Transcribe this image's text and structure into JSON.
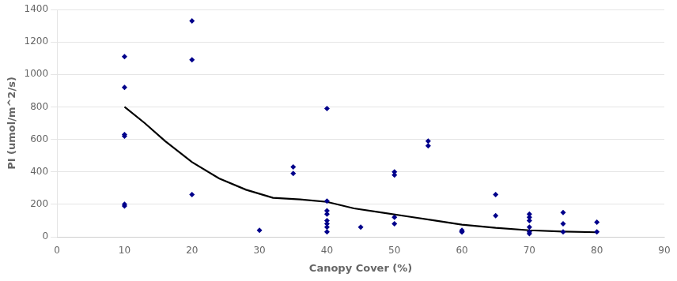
{
  "chart_data": {
    "type": "scatter",
    "x_label": "Canopy Cover (%)",
    "y_label": "PI (umol/m^2/s)",
    "series": [
      {
        "type": "scatter",
        "color": "#00008B",
        "marker": "diamond",
        "x": [
          10,
          10,
          10,
          10,
          10,
          10,
          20,
          20,
          20,
          30,
          35,
          35,
          40,
          40,
          40,
          40,
          40,
          40,
          40,
          40,
          45,
          50,
          50,
          50,
          50,
          55,
          55,
          60,
          60,
          60,
          65,
          65,
          70,
          70,
          70,
          70,
          70,
          70,
          75,
          75,
          75,
          80,
          80
        ],
        "values": [
          1110,
          920,
          630,
          620,
          190,
          200,
          1330,
          1090,
          260,
          40,
          430,
          390,
          790,
          220,
          160,
          140,
          100,
          80,
          60,
          30,
          60,
          400,
          380,
          120,
          80,
          590,
          560,
          40,
          30,
          30,
          260,
          130,
          140,
          120,
          100,
          60,
          30,
          20,
          150,
          80,
          30,
          90,
          30
        ]
      },
      {
        "type": "line",
        "color": "#000000",
        "line_style": "solid",
        "x": [
          10,
          13,
          16,
          20,
          24,
          28,
          32,
          36,
          40,
          44,
          48,
          52,
          56,
          60,
          65,
          70,
          75,
          80
        ],
        "values": [
          800,
          700,
          590,
          460,
          360,
          290,
          240,
          230,
          215,
          175,
          150,
          125,
          100,
          75,
          55,
          40,
          32,
          28
        ]
      }
    ],
    "xlim": [
      0,
      90
    ],
    "ylim": [
      0,
      1400
    ],
    "xticks": [
      0,
      10,
      20,
      30,
      40,
      50,
      60,
      70,
      80,
      90
    ],
    "yticks": [
      0,
      200,
      400,
      600,
      800,
      1000,
      1200,
      1400
    ],
    "grid": "y"
  }
}
